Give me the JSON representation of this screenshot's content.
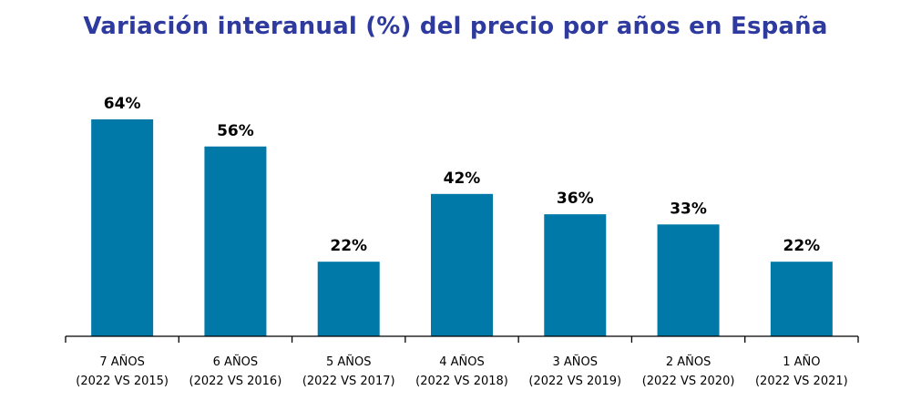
{
  "chart_data": {
    "type": "bar",
    "title": "Variación interanual (%) del precio por años en España",
    "categories": [
      [
        "7 AÑOS",
        "(2022 VS 2015)"
      ],
      [
        "6 AÑOS",
        "(2022 VS 2016)"
      ],
      [
        "5 AÑOS",
        "(2022 VS 2017)"
      ],
      [
        "4 AÑOS",
        "(2022 VS 2018)"
      ],
      [
        "3 AÑOS",
        "(2022 VS 2019)"
      ],
      [
        "2 AÑOS",
        "(2022 VS 2020)"
      ],
      [
        "1 AÑO",
        "(2022 VS 2021)"
      ]
    ],
    "values": [
      64,
      56,
      22,
      42,
      36,
      33,
      22
    ],
    "data_labels": [
      "64%",
      "56%",
      "22%",
      "42%",
      "36%",
      "33%",
      "22%"
    ],
    "unit": "%",
    "xlabel": "",
    "ylabel": "",
    "ylim": [
      0,
      64
    ],
    "grid": false,
    "legend": "none",
    "colors": {
      "bar": "#0078a8",
      "title": "#2e3a9e"
    }
  }
}
